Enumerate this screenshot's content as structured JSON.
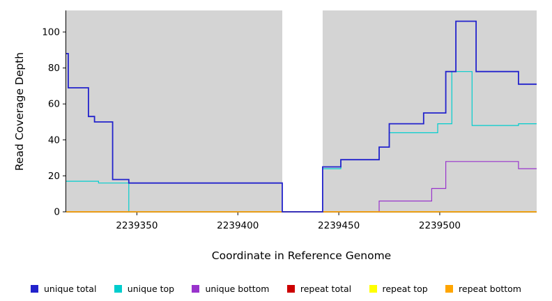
{
  "chart_data": {
    "type": "line",
    "step": true,
    "title": "",
    "xlabel": "Coordinate in Reference Genome",
    "ylabel": "Read Coverage Depth",
    "xlim": [
      2239315,
      2239548
    ],
    "ylim": [
      0,
      112
    ],
    "x_ticks": [
      2239350,
      2239400,
      2239450,
      2239500
    ],
    "y_ticks": [
      0,
      20,
      40,
      60,
      80,
      100
    ],
    "grid": false,
    "legend_position": "bottom",
    "shaded_region_color": "#D4D4D4",
    "background_regions": [
      {
        "x0": 2239315,
        "x1": 2239422
      },
      {
        "x0": 2239442,
        "x1": 2239548
      }
    ],
    "series": [
      {
        "name": "unique top",
        "color": "#00CDCD",
        "stroke_width": 1.2,
        "points": [
          [
            2239315,
            17
          ],
          [
            2239331,
            16
          ],
          [
            2239346,
            0
          ],
          [
            2239442,
            24
          ],
          [
            2239451,
            29
          ],
          [
            2239470,
            36
          ],
          [
            2239475,
            44
          ],
          [
            2239499,
            49
          ],
          [
            2239506,
            78
          ],
          [
            2239516,
            48
          ],
          [
            2239539,
            49
          ],
          [
            2239548,
            49
          ]
        ]
      },
      {
        "name": "unique bottom",
        "color": "#9933CC",
        "stroke_width": 1.2,
        "points": [
          [
            2239315,
            0
          ],
          [
            2239470,
            6
          ],
          [
            2239496,
            13
          ],
          [
            2239503,
            28
          ],
          [
            2239539,
            24
          ],
          [
            2239548,
            24
          ]
        ]
      },
      {
        "name": "repeat total",
        "color": "#CC0000",
        "stroke_width": 1.2,
        "points": [
          [
            2239315,
            0
          ],
          [
            2239548,
            0
          ]
        ]
      },
      {
        "name": "repeat top",
        "color": "#FFFF00",
        "stroke_width": 1.2,
        "points": [
          [
            2239315,
            0
          ],
          [
            2239548,
            0
          ]
        ]
      },
      {
        "name": "repeat bottom",
        "color": "#FFA500",
        "stroke_width": 1.4,
        "points": [
          [
            2239315,
            0
          ],
          [
            2239548,
            0
          ]
        ]
      },
      {
        "name": "unique total",
        "color": "#2222CC",
        "stroke_width": 1.8,
        "points": [
          [
            2239315,
            88
          ],
          [
            2239316,
            69
          ],
          [
            2239326,
            53
          ],
          [
            2239329,
            50
          ],
          [
            2239338,
            18
          ],
          [
            2239346,
            16
          ],
          [
            2239422,
            0
          ],
          [
            2239442,
            25
          ],
          [
            2239451,
            29
          ],
          [
            2239470,
            36
          ],
          [
            2239475,
            49
          ],
          [
            2239492,
            55
          ],
          [
            2239503,
            78
          ],
          [
            2239508,
            106
          ],
          [
            2239518,
            78
          ],
          [
            2239539,
            71
          ],
          [
            2239548,
            71
          ]
        ]
      }
    ]
  },
  "legend": {
    "items": [
      {
        "label": "unique total",
        "color": "#2222CC"
      },
      {
        "label": "unique top",
        "color": "#00CDCD"
      },
      {
        "label": "unique bottom",
        "color": "#9933CC"
      },
      {
        "label": "repeat total",
        "color": "#CC0000"
      },
      {
        "label": "repeat top",
        "color": "#FFFF00"
      },
      {
        "label": "repeat bottom",
        "color": "#FFA500"
      }
    ]
  }
}
